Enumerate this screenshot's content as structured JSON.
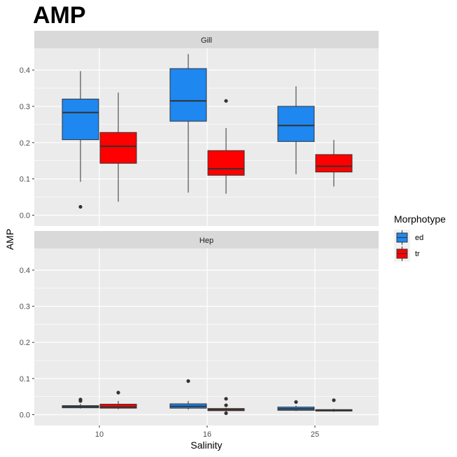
{
  "chart_data": {
    "type": "boxplot",
    "title": "AMP",
    "xlabel": "Salinity",
    "ylabel": "AMP",
    "categories": [
      "10",
      "16",
      "25"
    ],
    "ylim": [
      -0.03,
      0.46
    ],
    "yticks": [
      0.0,
      0.1,
      0.2,
      0.3,
      0.4
    ],
    "ytick_labels": [
      "0.0",
      "0.1",
      "0.2",
      "0.3",
      "0.4"
    ],
    "legend": {
      "title": "Morphotype",
      "position": "right",
      "entries": [
        {
          "name": "ed",
          "color": "#1e87f0"
        },
        {
          "name": "tr",
          "color": "#ff0000"
        }
      ]
    },
    "panels": [
      {
        "name": "Gill",
        "groups": [
          {
            "category": "10",
            "series": "ed",
            "min": 0.092,
            "q1": 0.208,
            "median": 0.283,
            "q3": 0.32,
            "max": 0.397,
            "outliers": [
              0.023
            ]
          },
          {
            "category": "10",
            "series": "tr",
            "min": 0.037,
            "q1": 0.143,
            "median": 0.19,
            "q3": 0.228,
            "max": 0.338,
            "outliers": []
          },
          {
            "category": "16",
            "series": "ed",
            "min": 0.062,
            "q1": 0.259,
            "median": 0.315,
            "q3": 0.404,
            "max": 0.444,
            "outliers": []
          },
          {
            "category": "16",
            "series": "tr",
            "min": 0.059,
            "q1": 0.11,
            "median": 0.128,
            "q3": 0.178,
            "max": 0.24,
            "outliers": [
              0.315
            ]
          },
          {
            "category": "25",
            "series": "ed",
            "min": 0.113,
            "q1": 0.203,
            "median": 0.247,
            "q3": 0.3,
            "max": 0.355,
            "outliers": []
          },
          {
            "category": "25",
            "series": "tr",
            "min": 0.079,
            "q1": 0.119,
            "median": 0.135,
            "q3": 0.167,
            "max": 0.207,
            "outliers": []
          }
        ]
      },
      {
        "name": "Hep",
        "groups": [
          {
            "category": "10",
            "series": "ed",
            "min": 0.017,
            "q1": 0.019,
            "median": 0.022,
            "q3": 0.025,
            "max": 0.03,
            "outliers": [
              0.038,
              0.042
            ]
          },
          {
            "category": "10",
            "series": "tr",
            "min": 0.015,
            "q1": 0.018,
            "median": 0.021,
            "q3": 0.029,
            "max": 0.038,
            "outliers": [
              0.061
            ]
          },
          {
            "category": "16",
            "series": "ed",
            "min": 0.014,
            "q1": 0.018,
            "median": 0.023,
            "q3": 0.03,
            "max": 0.038,
            "outliers": [
              0.093
            ]
          },
          {
            "category": "16",
            "series": "tr",
            "min": 0.008,
            "q1": 0.011,
            "median": 0.014,
            "q3": 0.017,
            "max": 0.019,
            "outliers": [
              0.026,
              0.044,
              0.004
            ]
          },
          {
            "category": "25",
            "series": "ed",
            "min": 0.01,
            "q1": 0.012,
            "median": 0.016,
            "q3": 0.021,
            "max": 0.025,
            "outliers": [
              0.035
            ]
          },
          {
            "category": "25",
            "series": "tr",
            "min": 0.008,
            "q1": 0.01,
            "median": 0.012,
            "q3": 0.014,
            "max": 0.016,
            "outliers": [
              0.04
            ]
          }
        ]
      }
    ]
  }
}
